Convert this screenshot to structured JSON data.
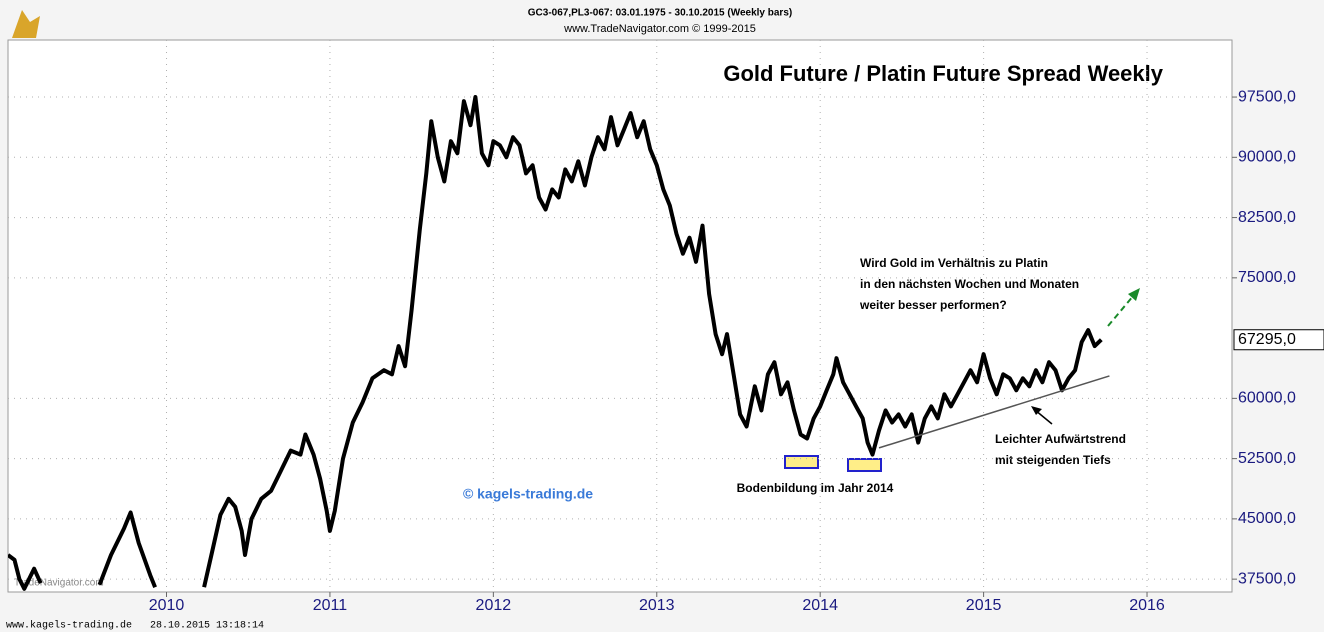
{
  "chart_data": {
    "type": "line",
    "header": [
      "GC3-067,PL3-067:  03.01.1975 - 30.10.2015  (Weekly bars)",
      "www.TradeNavigator.com © 1999-2015"
    ],
    "title": "Gold Future / Platin Future Spread Weekly",
    "watermark": "© kagels-trading.de",
    "source_watermark": "TradeNavigator.com",
    "footer": "www.kagels-trading.de   28.10.2015 13:18:14",
    "annotations": {
      "bottom": "Bodenbildung im Jahr 2014",
      "question": [
        "Wird Gold im Verhältnis zu Platin",
        "in den nächsten Wochen und Monaten",
        "weiter besser performen?"
      ],
      "trend": [
        "Leichter Aufwärtstrend",
        "mit steigenden Tiefs"
      ]
    },
    "last_value": {
      "value": 67295,
      "label": "67295,0"
    },
    "xlim": [
      2009.03,
      2016.52
    ],
    "xticks": [
      2010,
      2011,
      2012,
      2013,
      2014,
      2015,
      2016
    ],
    "ylim": [
      35900,
      104600
    ],
    "yticks": [
      {
        "value": 97500,
        "label": "97500,0"
      },
      {
        "value": 90000,
        "label": "90000,0"
      },
      {
        "value": 82500,
        "label": "82500,0"
      },
      {
        "value": 75000,
        "label": "75000,0"
      },
      {
        "value": 60000,
        "label": "60000,0"
      },
      {
        "value": 52500,
        "label": "52500,0"
      },
      {
        "value": 45000,
        "label": "45000,0"
      },
      {
        "value": 37500,
        "label": "37500,0"
      }
    ],
    "grid": true,
    "color": "#000000",
    "trendline": {
      "x": [
        2014.36,
        2015.77
      ],
      "values": [
        53834,
        62793
      ],
      "color": "#555555"
    },
    "x": [
      2009.03,
      2009.07,
      2009.1,
      2009.13,
      2009.19,
      2009.23,
      null,
      2009.59,
      2009.66,
      2009.74,
      2009.78,
      2009.83,
      2009.9,
      2009.93,
      null,
      2010.23,
      2010.28,
      2010.33,
      2010.38,
      2010.42,
      2010.46,
      2010.48,
      2010.52,
      2010.58,
      2010.64,
      2010.7,
      2010.76,
      2010.82,
      2010.85,
      2010.9,
      2010.94,
      2010.98,
      2011.0,
      2011.03,
      2011.08,
      2011.14,
      2011.2,
      2011.26,
      2011.33,
      2011.38,
      2011.42,
      2011.46,
      2011.5,
      2011.55,
      2011.59,
      2011.62,
      2011.66,
      2011.7,
      2011.74,
      2011.78,
      2011.82,
      2011.86,
      2011.89,
      2011.93,
      2011.97,
      2012.0,
      2012.04,
      2012.08,
      2012.12,
      2012.16,
      2012.2,
      2012.24,
      2012.28,
      2012.32,
      2012.36,
      2012.4,
      2012.44,
      2012.48,
      2012.52,
      2012.56,
      2012.6,
      2012.64,
      2012.68,
      2012.72,
      2012.76,
      2012.8,
      2012.84,
      2012.88,
      2012.92,
      2012.96,
      2013.0,
      2013.04,
      2013.08,
      2013.12,
      2013.16,
      2013.2,
      2013.24,
      2013.28,
      2013.32,
      2013.36,
      2013.4,
      2013.43,
      2013.47,
      2013.51,
      2013.55,
      2013.6,
      2013.64,
      2013.68,
      2013.72,
      2013.76,
      2013.8,
      2013.84,
      2013.88,
      2013.92,
      2013.96,
      2014.0,
      2014.04,
      2014.08,
      2014.1,
      2014.14,
      2014.18,
      2014.22,
      2014.26,
      2014.29,
      2014.32,
      2014.36,
      2014.4,
      2014.44,
      2014.48,
      2014.52,
      2014.56,
      2014.6,
      2014.64,
      2014.68,
      2014.72,
      2014.76,
      2014.8,
      2014.84,
      2014.88,
      2014.92,
      2014.96,
      2015.0,
      2015.04,
      2015.08,
      2015.12,
      2015.16,
      2015.2,
      2015.24,
      2015.28,
      2015.32,
      2015.36,
      2015.4,
      2015.44,
      2015.48,
      2015.52,
      2015.56,
      2015.6,
      2015.64,
      2015.68,
      2015.72
    ],
    "values": [
      40500,
      39900,
      37500,
      36300,
      38800,
      37000,
      null,
      36800,
      40500,
      43800,
      45800,
      42000,
      38000,
      36500,
      null,
      36500,
      41000,
      45500,
      47500,
      46500,
      43500,
      40500,
      45000,
      47500,
      48500,
      51000,
      53500,
      53000,
      55500,
      53000,
      50000,
      46000,
      43500,
      46000,
      52500,
      57000,
      59500,
      62500,
      63500,
      63000,
      66500,
      64000,
      71000,
      81000,
      88000,
      94500,
      90000,
      87000,
      92000,
      90500,
      97000,
      94000,
      97500,
      90500,
      89000,
      92000,
      91500,
      90000,
      92500,
      91500,
      88000,
      89000,
      85000,
      83500,
      86000,
      85000,
      88500,
      87000,
      89500,
      86500,
      90000,
      92500,
      91000,
      95000,
      91500,
      93500,
      95500,
      92500,
      94500,
      91000,
      89000,
      86000,
      84000,
      80500,
      78000,
      80000,
      77000,
      81500,
      73000,
      68000,
      65500,
      68000,
      63000,
      58000,
      56500,
      61500,
      58500,
      63000,
      64500,
      60500,
      62000,
      58500,
      55500,
      55000,
      57500,
      59000,
      61000,
      63000,
      65000,
      62000,
      60500,
      59000,
      57500,
      54500,
      53000,
      56000,
      58500,
      57000,
      58000,
      56500,
      58000,
      54500,
      57500,
      59000,
      57500,
      60500,
      59000,
      60500,
      62000,
      63500,
      62000,
      65500,
      62500,
      60500,
      63000,
      62500,
      61000,
      62500,
      61500,
      63500,
      62000,
      64500,
      63500,
      61000,
      62500,
      63500,
      67000,
      68500,
      66500,
      67295
    ]
  }
}
